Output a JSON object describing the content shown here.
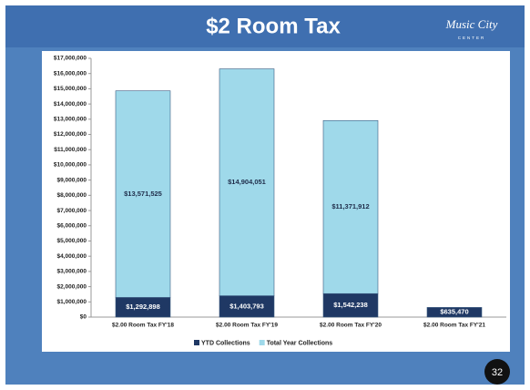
{
  "chart_data": {
    "type": "bar",
    "stacked": true,
    "title": "$2 Room Tax",
    "categories": [
      "$2.00 Room Tax FY'18",
      "$2.00 Room Tax FY'19",
      "$2.00 Room Tax FY'20",
      "$2.00 Room Tax FY'21"
    ],
    "series": [
      {
        "name": "YTD Collections",
        "color": "#1f3864",
        "values": [
          1292898,
          1403793,
          1542238,
          635470
        ],
        "value_labels": [
          "$1,292,898",
          "$1,403,793",
          "$1,542,238",
          "$635,470"
        ]
      },
      {
        "name": "Total Year Collections",
        "color": "#9fd9ea",
        "values": [
          13571525,
          14904051,
          11371912,
          null
        ],
        "value_labels": [
          "$13,571,525",
          "$14,904,051",
          "$11,371,912",
          null
        ]
      }
    ],
    "ylim": [
      0,
      17000000
    ],
    "yticks": [
      {
        "value": 0,
        "label": "$0"
      },
      {
        "value": 1000000,
        "label": "$1,000,000"
      },
      {
        "value": 2000000,
        "label": "$2,000,000"
      },
      {
        "value": 3000000,
        "label": "$3,000,000"
      },
      {
        "value": 4000000,
        "label": "$4,000,000"
      },
      {
        "value": 5000000,
        "label": "$5,000,000"
      },
      {
        "value": 6000000,
        "label": "$6,000,000"
      },
      {
        "value": 7000000,
        "label": "$7,000,000"
      },
      {
        "value": 8000000,
        "label": "$8,000,000"
      },
      {
        "value": 9000000,
        "label": "$9,000,000"
      },
      {
        "value": 10000000,
        "label": "$10,000,000"
      },
      {
        "value": 11000000,
        "label": "$11,000,000"
      },
      {
        "value": 12000000,
        "label": "$12,000,000"
      },
      {
        "value": 13000000,
        "label": "$13,000,000"
      },
      {
        "value": 14000000,
        "label": "$14,000,000"
      },
      {
        "value": 15000000,
        "label": "$15,000,000"
      },
      {
        "value": 16000000,
        "label": "$16,000,000"
      },
      {
        "value": 17000000,
        "label": "$17,000,000"
      }
    ],
    "grid": false,
    "legend": "bottom"
  },
  "logo": {
    "text": "Music City",
    "subtext": "CENTER"
  },
  "page_number": "32"
}
